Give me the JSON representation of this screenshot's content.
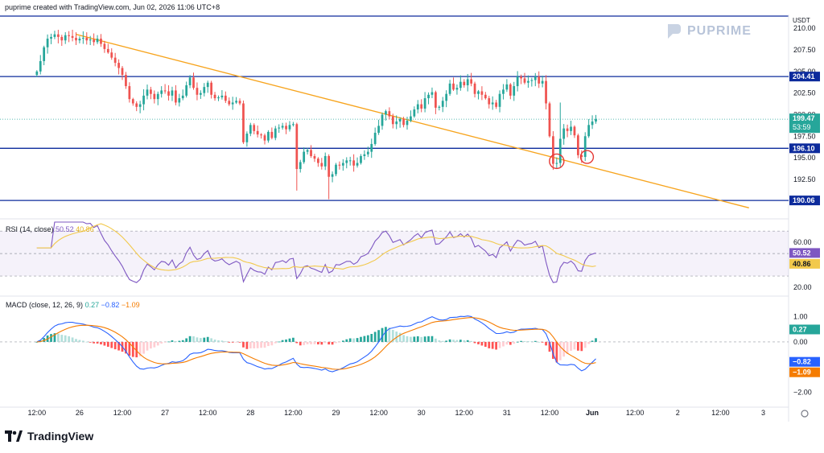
{
  "header": {
    "text": "puprime created with TradingView.com, Jun 02, 2026 11:06 UTC+8"
  },
  "watermark": {
    "text": "PUPRIME",
    "icon": "puprime-logo-icon"
  },
  "footer": {
    "brand": "TradingView",
    "icon": "tradingview-logo-icon"
  },
  "currency": "USDT",
  "colors": {
    "bull": "#26a69a",
    "bear": "#ef5350",
    "hline": "#0d2b9c",
    "trend": "#f7a41d",
    "rsi": "#7e57c2",
    "rsi_ma": "#f2c94c",
    "macd": "#2962ff",
    "signal": "#f57c00",
    "hist_pos_strong": "#26a69a",
    "hist_pos_weak": "#b2dfdb",
    "hist_neg_strong": "#ff5252",
    "hist_neg_weak": "#ffcdd2"
  },
  "chart_data": [
    {
      "type": "candlestick",
      "name": "price",
      "y_ticks": [
        "210.00",
        "207.50",
        "205.00",
        "202.50",
        "200.00",
        "197.50",
        "195.00",
        "192.50"
      ],
      "ylim": [
        188.3,
        211.6
      ],
      "x_labels": [
        "12:00",
        "26",
        "12:00",
        "27",
        "12:00",
        "28",
        "12:00",
        "29",
        "12:00",
        "30",
        "12:00",
        "31",
        "12:00",
        "Jun",
        "12:00",
        "2",
        "12:00",
        "3"
      ],
      "x_label_positions": [
        0,
        12,
        24,
        36,
        48,
        60,
        72,
        84,
        96,
        108,
        120,
        132,
        144,
        156,
        168,
        180,
        192,
        204
      ],
      "x_range": [
        -9,
        210
      ],
      "close_series_hourly": [
        205.0,
        206.2,
        207.8,
        208.8,
        209.0,
        209.3,
        209.0,
        208.6,
        209.2,
        209.1,
        208.9,
        208.6,
        208.8,
        208.9,
        208.6,
        208.7,
        208.4,
        208.8,
        208.2,
        207.6,
        207.2,
        206.6,
        206.0,
        205.4,
        204.6,
        203.3,
        201.8,
        201.3,
        200.9,
        201.2,
        202.2,
        202.9,
        202.4,
        201.8,
        202.4,
        202.8,
        202.7,
        202.2,
        202.8,
        201.4,
        201.9,
        202.2,
        203.4,
        204.3,
        203.1,
        202.3,
        202.5,
        203.2,
        203.7,
        202.3,
        201.9,
        202.0,
        202.2,
        201.6,
        201.2,
        201.4,
        201.6,
        201.3,
        196.8,
        197.8,
        198.8,
        198.1,
        197.7,
        197.6,
        197.0,
        198.0,
        197.3,
        198.4,
        198.5,
        198.7,
        198.3,
        198.8,
        198.9,
        193.7,
        194.5,
        195.7,
        195.9,
        195.2,
        194.9,
        194.4,
        194.0,
        195.2,
        192.8,
        193.1,
        194.2,
        194.1,
        194.4,
        194.7,
        194.7,
        194.1,
        194.4,
        195.2,
        195.4,
        195.7,
        196.6,
        197.9,
        198.7,
        200.0,
        200.4,
        199.8,
        198.9,
        199.2,
        199.5,
        198.8,
        199.3,
        199.8,
        200.6,
        201.2,
        200.7,
        201.9,
        202.3,
        202.6,
        200.8,
        200.9,
        201.6,
        202.4,
        203.6,
        202.9,
        203.1,
        203.8,
        203.4,
        204.1,
        203.6,
        202.4,
        202.7,
        202.3,
        201.9,
        201.2,
        201.4,
        200.9,
        202.4,
        202.9,
        203.5,
        202.2,
        203.3,
        204.4,
        204.2,
        203.7,
        203.9,
        204.0,
        204.4,
        203.6,
        203.9,
        201.3,
        197.5,
        194.3,
        194.4,
        197.2,
        198.4,
        198.1,
        198.6,
        197.6,
        195.3,
        195.1,
        197.5,
        198.8,
        199.2,
        199.5
      ],
      "series_scale_note": "hourly closes, x index 0 = 12:00 May 25",
      "last_price": "199.47",
      "countdown": "53:59"
    },
    {
      "type": "levels",
      "name": "horizontal-levels",
      "values": [
        204.41,
        196.1,
        190.06
      ],
      "labels": [
        "204.41",
        "196.10",
        "190.06"
      ]
    },
    {
      "type": "line",
      "name": "trendline",
      "x": [
        11,
        200
      ],
      "y": [
        209.3,
        189.2
      ]
    },
    {
      "type": "line",
      "name": "rsi",
      "title": "RSI (14, close)",
      "values_label": [
        "50.52",
        "40.86"
      ],
      "y_ticks": [
        "60.00",
        "20.00"
      ],
      "ylim": [
        15,
        78
      ],
      "band": [
        30,
        70
      ],
      "last": 50.52,
      "ma_last": 40.86
    },
    {
      "type": "bar",
      "name": "macd",
      "title": "MACD (close, 12, 26, 9)",
      "values_label": [
        "0.27",
        "−0.82",
        "−1.09"
      ],
      "y_ticks": [
        "1.00",
        "0.00",
        "−2.00"
      ],
      "ylim": [
        -2.55,
        1.75
      ],
      "macd_last": -0.82,
      "signal_last": -1.09,
      "hist_last": 0.27
    }
  ]
}
